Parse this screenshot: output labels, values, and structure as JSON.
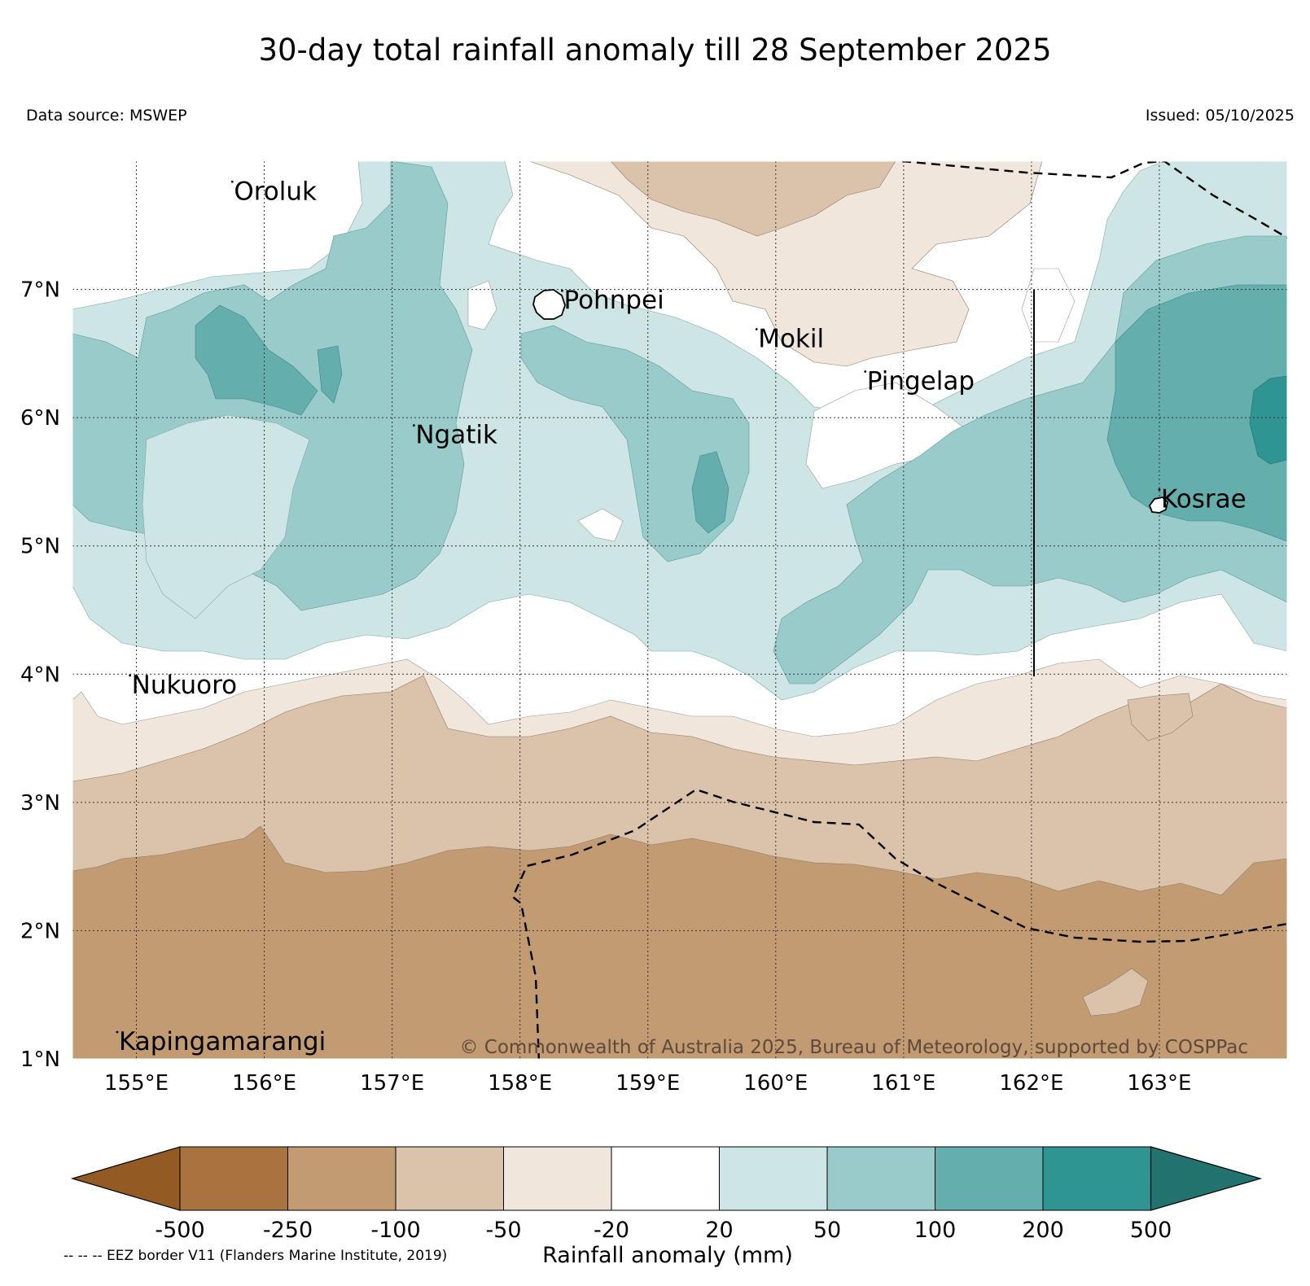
{
  "header": {
    "title": "30-day total rainfall anomaly till 28 September 2025",
    "data_source": "Data source: MSWEP",
    "issued": "Issued: 05/10/2025"
  },
  "map": {
    "lon_range": [
      154.5,
      164.0
    ],
    "lat_range": [
      1.0,
      8.0
    ],
    "lon_ticks": [
      {
        "value": 155,
        "label": "155°E"
      },
      {
        "value": 156,
        "label": "156°E"
      },
      {
        "value": 157,
        "label": "157°E"
      },
      {
        "value": 158,
        "label": "158°E"
      },
      {
        "value": 159,
        "label": "159°E"
      },
      {
        "value": 160,
        "label": "160°E"
      },
      {
        "value": 161,
        "label": "161°E"
      },
      {
        "value": 162,
        "label": "162°E"
      },
      {
        "value": 163,
        "label": "163°E"
      }
    ],
    "lat_ticks": [
      {
        "value": 1,
        "label": "1°N"
      },
      {
        "value": 2,
        "label": "2°N"
      },
      {
        "value": 3,
        "label": "3°N"
      },
      {
        "value": 4,
        "label": "4°N"
      },
      {
        "value": 5,
        "label": "5°N"
      },
      {
        "value": 6,
        "label": "6°N"
      },
      {
        "value": 7,
        "label": "7°N"
      }
    ],
    "places": [
      {
        "name": "Oroluk",
        "lon": 155.75,
        "lat": 7.7
      },
      {
        "name": "Pohnpei",
        "lon": 158.33,
        "lat": 6.85
      },
      {
        "name": "Mokil",
        "lon": 159.85,
        "lat": 6.55
      },
      {
        "name": "Pingelap",
        "lon": 160.7,
        "lat": 6.22
      },
      {
        "name": "Ngatik",
        "lon": 157.17,
        "lat": 5.8
      },
      {
        "name": "Kosrae",
        "lon": 163.0,
        "lat": 5.3
      },
      {
        "name": "Nukuoro",
        "lon": 154.95,
        "lat": 3.85
      },
      {
        "name": "Kapingamarangi",
        "lon": 154.85,
        "lat": 1.07
      }
    ],
    "copyright": "© Commonwealth of Australia 2025, Bureau of Meteorology, supported by COSPPac"
  },
  "colorbar": {
    "colors": [
      "#935a24",
      "#a8733e",
      "#c29b72",
      "#dac3aa",
      "#f0e6dc",
      "#ffffff",
      "#cde5e4",
      "#9acbcb",
      "#64aeae",
      "#2f9592",
      "#22726f"
    ],
    "labels": [
      "-500",
      "-250",
      "-100",
      "-50",
      "-20",
      "20",
      "50",
      "100",
      "200",
      "500"
    ],
    "title": "Rainfall anomaly (mm)"
  },
  "footnote": "-- -- -- EEZ border V11 (Flanders Marine Institute, 2019)"
}
